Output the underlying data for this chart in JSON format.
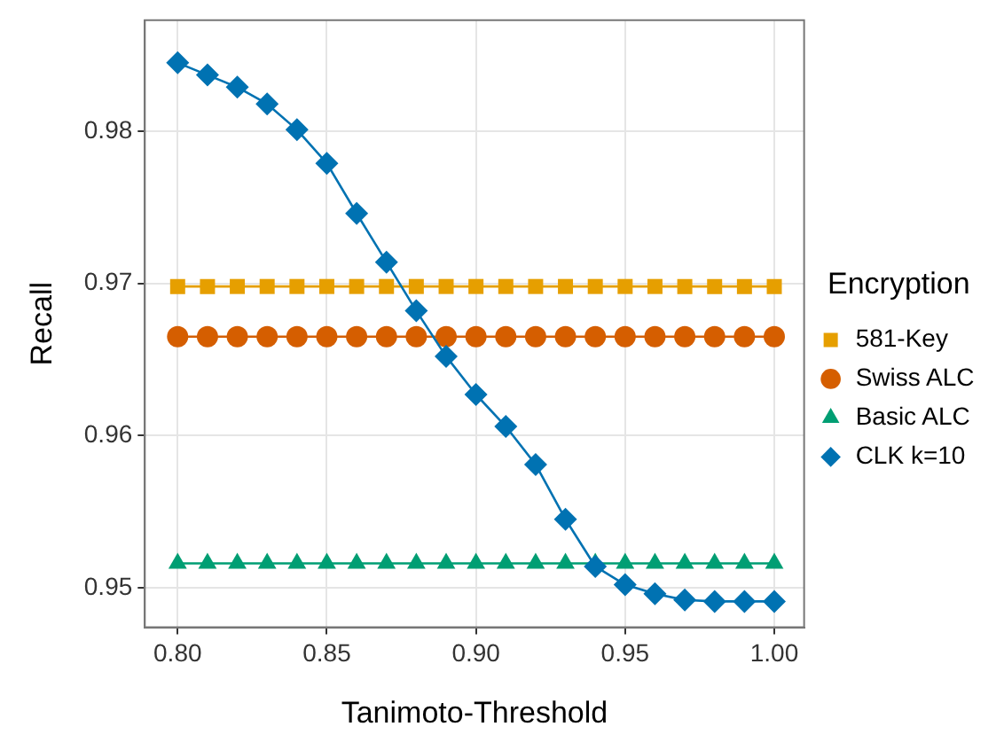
{
  "chart_data": {
    "type": "line",
    "xlabel": "Tanimoto-Threshold",
    "ylabel": "Recall",
    "legend_title": "Encryption",
    "legend": "right",
    "grid": true,
    "x": [
      0.8,
      0.81,
      0.82,
      0.83,
      0.84,
      0.85,
      0.86,
      0.87,
      0.88,
      0.89,
      0.9,
      0.91,
      0.92,
      0.93,
      0.94,
      0.95,
      0.96,
      0.97,
      0.98,
      0.99,
      1.0
    ],
    "xlim": [
      0.789,
      1.01
    ],
    "xticks": [
      {
        "value": 0.8,
        "label": "0.80"
      },
      0.85,
      {
        "value": 0.9,
        "label": "0.90"
      },
      0.95,
      {
        "value": 1.0,
        "label": "1.00"
      }
    ],
    "ylim": [
      0.9474,
      0.9873
    ],
    "yticks": [
      0.95,
      0.96,
      0.97,
      0.98
    ],
    "series": [
      {
        "name": "581-Key",
        "color": "#e69f00",
        "marker": "square",
        "values": [
          0.9698,
          0.9698,
          0.9698,
          0.9698,
          0.9698,
          0.9698,
          0.9698,
          0.9698,
          0.9698,
          0.9698,
          0.9698,
          0.9698,
          0.9698,
          0.9698,
          0.9698,
          0.9698,
          0.9698,
          0.9698,
          0.9698,
          0.9698,
          0.9698
        ]
      },
      {
        "name": "Swiss ALC",
        "color": "#d55e00",
        "marker": "circle",
        "values": [
          0.9665,
          0.9665,
          0.9665,
          0.9665,
          0.9665,
          0.9665,
          0.9665,
          0.9665,
          0.9665,
          0.9665,
          0.9665,
          0.9665,
          0.9665,
          0.9665,
          0.9665,
          0.9665,
          0.9665,
          0.9665,
          0.9665,
          0.9665,
          0.9665
        ]
      },
      {
        "name": "Basic ALC",
        "color": "#009e73",
        "marker": "triangle",
        "values": [
          0.9516,
          0.9516,
          0.9516,
          0.9516,
          0.9516,
          0.9516,
          0.9516,
          0.9516,
          0.9516,
          0.9516,
          0.9516,
          0.9516,
          0.9516,
          0.9516,
          0.9516,
          0.9516,
          0.9516,
          0.9516,
          0.9516,
          0.9516,
          0.9516
        ]
      },
      {
        "name": "CLK k=10",
        "color": "#0072b2",
        "marker": "diamond",
        "values": [
          0.9845,
          0.9837,
          0.9829,
          0.9818,
          0.9801,
          0.9779,
          0.9746,
          0.9714,
          0.9682,
          0.9652,
          0.9627,
          0.9606,
          0.9581,
          0.9545,
          0.9514,
          0.9502,
          0.9496,
          0.9492,
          0.9491,
          0.9491,
          0.9491
        ]
      }
    ]
  }
}
